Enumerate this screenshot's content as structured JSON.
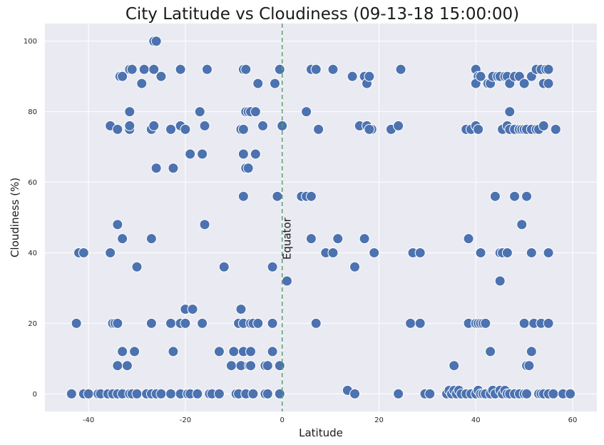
{
  "chart_data": {
    "type": "scatter",
    "title": "City Latitude vs Cloudiness (09-13-18 15:00:00)",
    "xlabel": "Latitude",
    "ylabel": "Cloudiness (%)",
    "xlim": [
      -49,
      65
    ],
    "ylim": [
      -5,
      105
    ],
    "xticks": [
      -40,
      -20,
      0,
      20,
      40,
      60
    ],
    "yticks": [
      0,
      20,
      40,
      60,
      80,
      100
    ],
    "grid": true,
    "background": "#eaeaf2",
    "grid_color": "#ffffff",
    "marker_color": "#4c72b0",
    "marker_edge": "#ffffff",
    "reference_line": {
      "x": 0,
      "label": "Equator",
      "color": "#5a9e6f",
      "style": "dashed"
    },
    "points": [
      [
        -43.5,
        0
      ],
      [
        -41,
        0
      ],
      [
        -40,
        0
      ],
      [
        -38,
        0
      ],
      [
        -37.5,
        0
      ],
      [
        -36,
        0
      ],
      [
        -35,
        0
      ],
      [
        -34,
        0
      ],
      [
        -33,
        0
      ],
      [
        -31.5,
        0
      ],
      [
        -31,
        0
      ],
      [
        -30,
        0
      ],
      [
        -28,
        0
      ],
      [
        -27,
        0
      ],
      [
        -26,
        0
      ],
      [
        -25,
        0
      ],
      [
        -23,
        0
      ],
      [
        -21,
        0
      ],
      [
        -19.5,
        0
      ],
      [
        -19,
        0
      ],
      [
        -17.5,
        0
      ],
      [
        -15,
        0
      ],
      [
        -14.5,
        0
      ],
      [
        -13,
        0
      ],
      [
        -9.5,
        0
      ],
      [
        -9,
        0
      ],
      [
        -7.5,
        0
      ],
      [
        -6,
        0
      ],
      [
        -3.5,
        0
      ],
      [
        -3,
        0
      ],
      [
        -0.5,
        0
      ],
      [
        -42.5,
        20
      ],
      [
        -35,
        20
      ],
      [
        -34.5,
        20
      ],
      [
        -34,
        20
      ],
      [
        -27,
        20
      ],
      [
        -23,
        20
      ],
      [
        -21,
        20
      ],
      [
        -20,
        20
      ],
      [
        -16.5,
        20
      ],
      [
        -9,
        20
      ],
      [
        -8,
        20
      ],
      [
        -6.5,
        20
      ],
      [
        -6,
        20
      ],
      [
        -5,
        20
      ],
      [
        -2,
        20
      ],
      [
        -33,
        12
      ],
      [
        -30.5,
        12
      ],
      [
        -22.5,
        12
      ],
      [
        -13,
        12
      ],
      [
        -10,
        12
      ],
      [
        -8,
        12
      ],
      [
        -6.5,
        12
      ],
      [
        -2,
        12
      ],
      [
        -34,
        8
      ],
      [
        -32,
        8
      ],
      [
        -10.5,
        8
      ],
      [
        -8.5,
        8
      ],
      [
        -6.8,
        8
      ],
      [
        -6.5,
        8
      ],
      [
        -3.5,
        8
      ],
      [
        -3,
        8
      ],
      [
        -0.5,
        8
      ],
      [
        -8.5,
        24
      ],
      [
        -20,
        24
      ],
      [
        -18.5,
        24
      ],
      [
        -42,
        40
      ],
      [
        -41,
        40
      ],
      [
        -35.5,
        40
      ],
      [
        -30,
        36
      ],
      [
        -12,
        36
      ],
      [
        -2,
        36
      ],
      [
        -33,
        44
      ],
      [
        -27,
        44
      ],
      [
        -34,
        48
      ],
      [
        -16,
        48
      ],
      [
        -8,
        56
      ],
      [
        -1,
        56
      ],
      [
        -26,
        64
      ],
      [
        -22.5,
        64
      ],
      [
        -7.5,
        64
      ],
      [
        -7,
        64
      ],
      [
        -19,
        68
      ],
      [
        -16.5,
        68
      ],
      [
        -8,
        68
      ],
      [
        -5.5,
        68
      ],
      [
        -35.5,
        76
      ],
      [
        -34,
        75
      ],
      [
        -31.5,
        75
      ],
      [
        -31.5,
        76
      ],
      [
        -27,
        75
      ],
      [
        -26.5,
        76
      ],
      [
        -23,
        75
      ],
      [
        -21,
        76
      ],
      [
        -20,
        75
      ],
      [
        -16,
        76
      ],
      [
        -8.5,
        75
      ],
      [
        -8,
        75
      ],
      [
        -4,
        76
      ],
      [
        0,
        76
      ],
      [
        -31.5,
        80
      ],
      [
        -17,
        80
      ],
      [
        -7.5,
        80
      ],
      [
        -7,
        80
      ],
      [
        -6.5,
        80
      ],
      [
        -5.5,
        80
      ],
      [
        -33.5,
        90
      ],
      [
        -33,
        90
      ],
      [
        -31.5,
        92
      ],
      [
        -31,
        92
      ],
      [
        -29,
        88
      ],
      [
        -28.5,
        92
      ],
      [
        -26.5,
        92
      ],
      [
        -25,
        90
      ],
      [
        -21,
        92
      ],
      [
        -15.5,
        92
      ],
      [
        -8,
        92
      ],
      [
        -7.5,
        92
      ],
      [
        -5,
        88
      ],
      [
        -1.5,
        88
      ],
      [
        -0.5,
        92
      ],
      [
        -26.5,
        100
      ],
      [
        -26,
        100
      ],
      [
        1,
        32
      ],
      [
        4,
        56
      ],
      [
        5,
        56
      ],
      [
        6,
        56
      ],
      [
        6,
        44
      ],
      [
        9,
        40
      ],
      [
        10.5,
        40
      ],
      [
        11.5,
        44
      ],
      [
        15,
        36
      ],
      [
        17,
        44
      ],
      [
        19,
        40
      ],
      [
        5,
        80
      ],
      [
        7.5,
        75
      ],
      [
        6,
        92
      ],
      [
        7,
        92
      ],
      [
        10.5,
        92
      ],
      [
        14.5,
        90
      ],
      [
        16,
        76
      ],
      [
        17,
        90
      ],
      [
        17.5,
        88
      ],
      [
        18,
        90
      ],
      [
        17.5,
        76
      ],
      [
        18.5,
        75
      ],
      [
        18,
        75
      ],
      [
        22.5,
        75
      ],
      [
        24,
        76
      ],
      [
        24.5,
        92
      ],
      [
        13.5,
        1
      ],
      [
        15,
        0
      ],
      [
        7,
        20
      ],
      [
        24,
        0
      ],
      [
        29.5,
        0
      ],
      [
        30.5,
        0
      ],
      [
        34,
        0
      ],
      [
        34.5,
        1
      ],
      [
        35,
        0
      ],
      [
        35.5,
        1
      ],
      [
        36,
        0
      ],
      [
        36.5,
        1
      ],
      [
        37,
        0
      ],
      [
        38,
        0
      ],
      [
        39,
        0
      ],
      [
        40,
        0
      ],
      [
        40.5,
        1
      ],
      [
        41,
        0
      ],
      [
        41.5,
        0
      ],
      [
        42,
        0
      ],
      [
        43,
        0
      ],
      [
        43.5,
        1
      ],
      [
        44,
        0
      ],
      [
        45,
        1
      ],
      [
        45.5,
        0
      ],
      [
        46,
        1
      ],
      [
        46.5,
        0
      ],
      [
        47,
        0
      ],
      [
        48,
        0
      ],
      [
        49,
        0
      ],
      [
        50,
        0
      ],
      [
        50.5,
        0
      ],
      [
        53,
        0
      ],
      [
        53.5,
        0
      ],
      [
        54,
        0
      ],
      [
        55,
        0
      ],
      [
        56,
        0
      ],
      [
        58,
        0
      ],
      [
        59.5,
        0
      ],
      [
        26.5,
        20
      ],
      [
        28.5,
        20
      ],
      [
        38.5,
        20
      ],
      [
        40,
        20
      ],
      [
        40.5,
        20
      ],
      [
        41,
        20
      ],
      [
        41.5,
        20
      ],
      [
        42,
        20
      ],
      [
        50,
        20
      ],
      [
        52,
        20
      ],
      [
        53.5,
        20
      ],
      [
        55,
        20
      ],
      [
        35.5,
        8
      ],
      [
        43,
        12
      ],
      [
        50.5,
        8
      ],
      [
        51,
        8
      ],
      [
        51.5,
        12
      ],
      [
        27,
        40
      ],
      [
        28.5,
        40
      ],
      [
        38.5,
        44
      ],
      [
        41,
        40
      ],
      [
        45,
        40
      ],
      [
        45.5,
        40
      ],
      [
        46.5,
        40
      ],
      [
        49.5,
        48
      ],
      [
        51.5,
        40
      ],
      [
        55,
        40
      ],
      [
        44,
        56
      ],
      [
        48,
        56
      ],
      [
        50.5,
        56
      ],
      [
        45,
        32
      ],
      [
        38,
        75
      ],
      [
        39,
        75
      ],
      [
        40,
        76
      ],
      [
        40.5,
        75
      ],
      [
        45.5,
        75
      ],
      [
        46.5,
        76
      ],
      [
        47,
        75
      ],
      [
        48,
        75
      ],
      [
        49,
        75
      ],
      [
        49.5,
        75
      ],
      [
        50,
        75
      ],
      [
        50.5,
        75
      ],
      [
        51.5,
        75
      ],
      [
        52.5,
        75
      ],
      [
        53,
        75
      ],
      [
        54,
        76
      ],
      [
        56.5,
        75
      ],
      [
        47,
        80
      ],
      [
        40,
        92
      ],
      [
        40.5,
        90
      ],
      [
        40,
        88
      ],
      [
        41,
        90
      ],
      [
        42.5,
        88
      ],
      [
        43,
        88
      ],
      [
        43.5,
        90
      ],
      [
        44.5,
        90
      ],
      [
        45,
        90
      ],
      [
        46,
        90
      ],
      [
        46.5,
        90
      ],
      [
        47,
        88
      ],
      [
        48,
        90
      ],
      [
        49,
        90
      ],
      [
        50,
        88
      ],
      [
        51.5,
        90
      ],
      [
        52.5,
        92
      ],
      [
        53.5,
        92
      ],
      [
        54,
        88
      ],
      [
        54.5,
        92
      ],
      [
        55,
        88
      ],
      [
        55,
        92
      ]
    ]
  }
}
